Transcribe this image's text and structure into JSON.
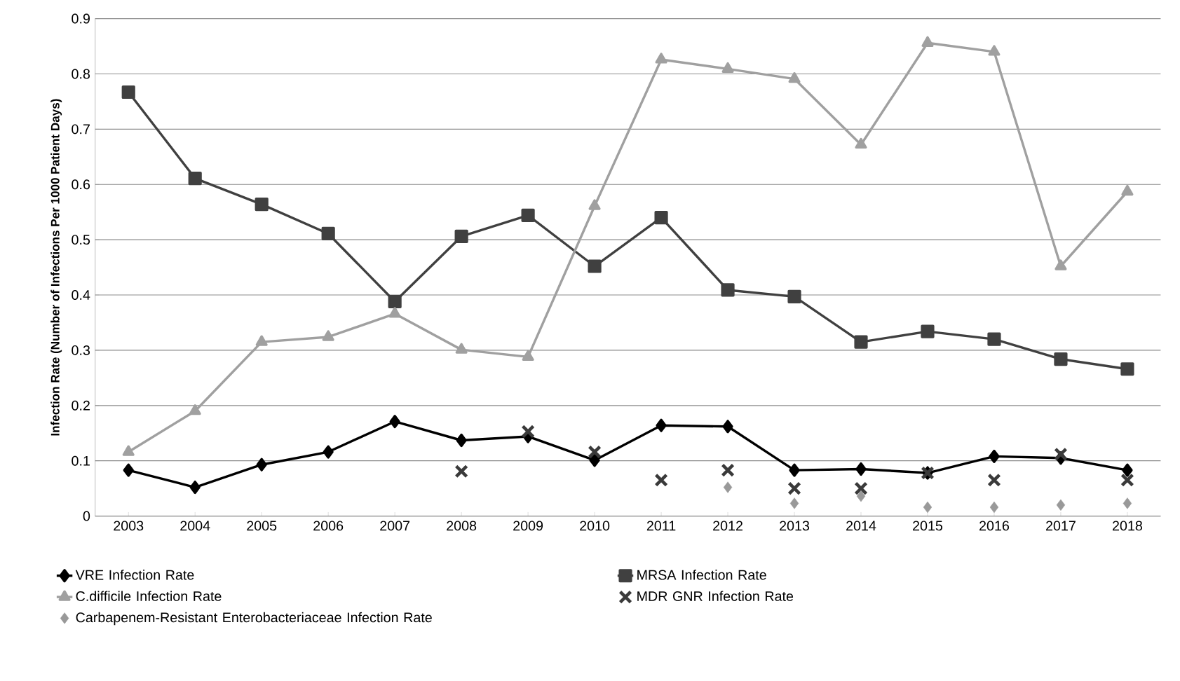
{
  "chart_data": {
    "type": "line",
    "ylabel": "Infection Rate (Number of Infections Per 1000 Patient Days)",
    "categories": [
      "2003",
      "2004",
      "2005",
      "2006",
      "2007",
      "2008",
      "2009",
      "2010",
      "2011",
      "2012",
      "2013",
      "2014",
      "2015",
      "2016",
      "2017",
      "2018"
    ],
    "series": [
      {
        "name": "VRE Infection Rate",
        "color": "#000000",
        "marker": "diamond",
        "values": [
          0.083,
          0.052,
          0.093,
          0.116,
          0.171,
          0.137,
          0.144,
          0.101,
          0.164,
          0.162,
          0.083,
          0.085,
          0.078,
          0.108,
          0.105,
          0.083
        ]
      },
      {
        "name": "MRSA Infection Rate",
        "color": "#404040",
        "marker": "square",
        "values": [
          0.767,
          0.611,
          0.564,
          0.511,
          0.388,
          0.506,
          0.544,
          0.452,
          0.54,
          0.409,
          0.397,
          0.315,
          0.334,
          0.32,
          0.284,
          0.266
        ]
      },
      {
        "name": "C.difficile Infection Rate",
        "color": "#a0a0a0",
        "marker": "triangle",
        "values": [
          0.116,
          0.19,
          0.315,
          0.324,
          0.366,
          0.301,
          0.288,
          0.561,
          0.826,
          0.809,
          0.791,
          0.672,
          0.856,
          0.84,
          0.452,
          0.587
        ]
      },
      {
        "name": "MDR GNR Infection Rate",
        "type": "scatter",
        "color": "#3a3a3a",
        "marker": "cross",
        "values": [
          null,
          null,
          null,
          null,
          null,
          0.081,
          0.153,
          0.116,
          0.065,
          0.083,
          0.05,
          0.05,
          0.078,
          0.065,
          0.112,
          0.065
        ]
      },
      {
        "name": "Carbapenem-Resistant Enterobacteriaceae Infection Rate",
        "type": "scatter",
        "color": "#999999",
        "marker": "diamond",
        "values": [
          null,
          null,
          null,
          null,
          null,
          null,
          null,
          null,
          null,
          0.052,
          0.023,
          0.036,
          0.016,
          0.016,
          0.02,
          0.023
        ]
      }
    ],
    "ylim": [
      0,
      0.9
    ],
    "yticks": [
      0,
      0.1,
      0.2,
      0.3,
      0.4,
      0.5,
      0.6,
      0.7,
      0.8,
      0.9
    ],
    "grid": "y",
    "legend": "bottom",
    "line_style": "solid"
  }
}
